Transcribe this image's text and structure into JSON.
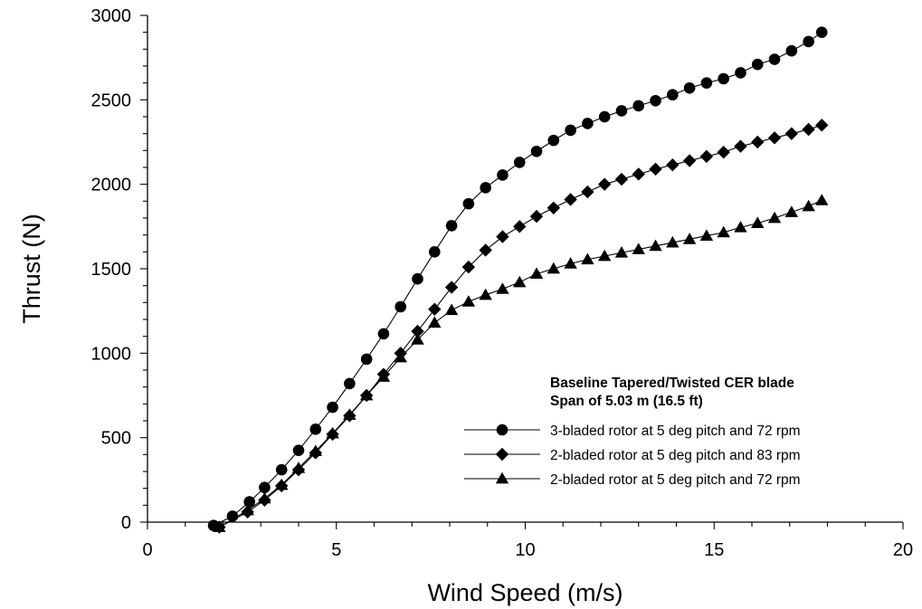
{
  "chart_data": {
    "type": "line",
    "xlabel": "Wind Speed (m/s)",
    "ylabel": "Thrust (N)",
    "xlim": [
      0,
      20
    ],
    "ylim": [
      0,
      3000
    ],
    "x_ticks": [
      "0",
      "5",
      "10",
      "15",
      "20"
    ],
    "y_ticks": [
      "0",
      "500",
      "1000",
      "1500",
      "2000",
      "2500",
      "3000"
    ],
    "grid": false,
    "legend_position": "bottom-right",
    "legend_title": [
      "Baseline Tapered/Twisted CER blade",
      "Span of 5.03 m (16.5 ft)"
    ],
    "series": [
      {
        "name": "3-bladed rotor at 5 deg pitch and 72 rpm",
        "marker": "circle",
        "x": [
          1.75,
          2.25,
          2.7,
          3.1,
          3.55,
          4.0,
          4.45,
          4.9,
          5.35,
          5.8,
          6.25,
          6.7,
          7.15,
          7.6,
          8.05,
          8.5,
          8.95,
          9.4,
          9.85,
          10.3,
          10.75,
          11.2,
          11.65,
          12.1,
          12.55,
          13.0,
          13.45,
          13.9,
          14.35,
          14.8,
          15.25,
          15.7,
          16.15,
          16.6,
          17.05,
          17.5,
          17.85
        ],
        "values": [
          -20,
          35,
          120,
          205,
          310,
          425,
          550,
          680,
          820,
          965,
          1115,
          1275,
          1440,
          1600,
          1755,
          1885,
          1980,
          2055,
          2130,
          2195,
          2260,
          2320,
          2360,
          2400,
          2435,
          2465,
          2495,
          2530,
          2570,
          2600,
          2625,
          2660,
          2710,
          2740,
          2790,
          2845,
          2900
        ]
      },
      {
        "name": "2-bladed rotor at 5 deg pitch and 83 rpm",
        "marker": "diamond",
        "x": [
          1.9,
          2.65,
          3.1,
          3.55,
          4.0,
          4.45,
          4.9,
          5.35,
          5.8,
          6.25,
          6.7,
          7.15,
          7.6,
          8.05,
          8.5,
          8.95,
          9.4,
          9.85,
          10.3,
          10.75,
          11.2,
          11.65,
          12.1,
          12.55,
          13.0,
          13.45,
          13.9,
          14.35,
          14.8,
          15.25,
          15.7,
          16.15,
          16.6,
          17.05,
          17.5,
          17.85
        ],
        "values": [
          -30,
          60,
          130,
          215,
          310,
          410,
          520,
          630,
          750,
          875,
          1000,
          1130,
          1260,
          1390,
          1510,
          1610,
          1690,
          1750,
          1810,
          1860,
          1910,
          1955,
          2000,
          2030,
          2060,
          2090,
          2115,
          2140,
          2165,
          2190,
          2225,
          2250,
          2275,
          2300,
          2325,
          2350
        ]
      },
      {
        "name": "2-bladed rotor at 5 deg pitch and 72 rpm",
        "marker": "triangle",
        "x": [
          1.9,
          2.65,
          3.1,
          3.55,
          4.0,
          4.45,
          4.9,
          5.35,
          5.8,
          6.25,
          6.7,
          7.15,
          7.6,
          8.05,
          8.5,
          8.95,
          9.4,
          9.85,
          10.3,
          10.75,
          11.2,
          11.65,
          12.1,
          12.55,
          13.0,
          13.45,
          13.9,
          14.35,
          14.8,
          15.25,
          15.7,
          16.15,
          16.6,
          17.05,
          17.5,
          17.85
        ],
        "values": [
          -30,
          70,
          140,
          220,
          320,
          420,
          525,
          635,
          750,
          860,
          975,
          1080,
          1180,
          1255,
          1305,
          1345,
          1380,
          1420,
          1470,
          1500,
          1530,
          1555,
          1575,
          1595,
          1615,
          1635,
          1655,
          1675,
          1695,
          1715,
          1745,
          1770,
          1800,
          1835,
          1870,
          1905
        ]
      }
    ]
  }
}
